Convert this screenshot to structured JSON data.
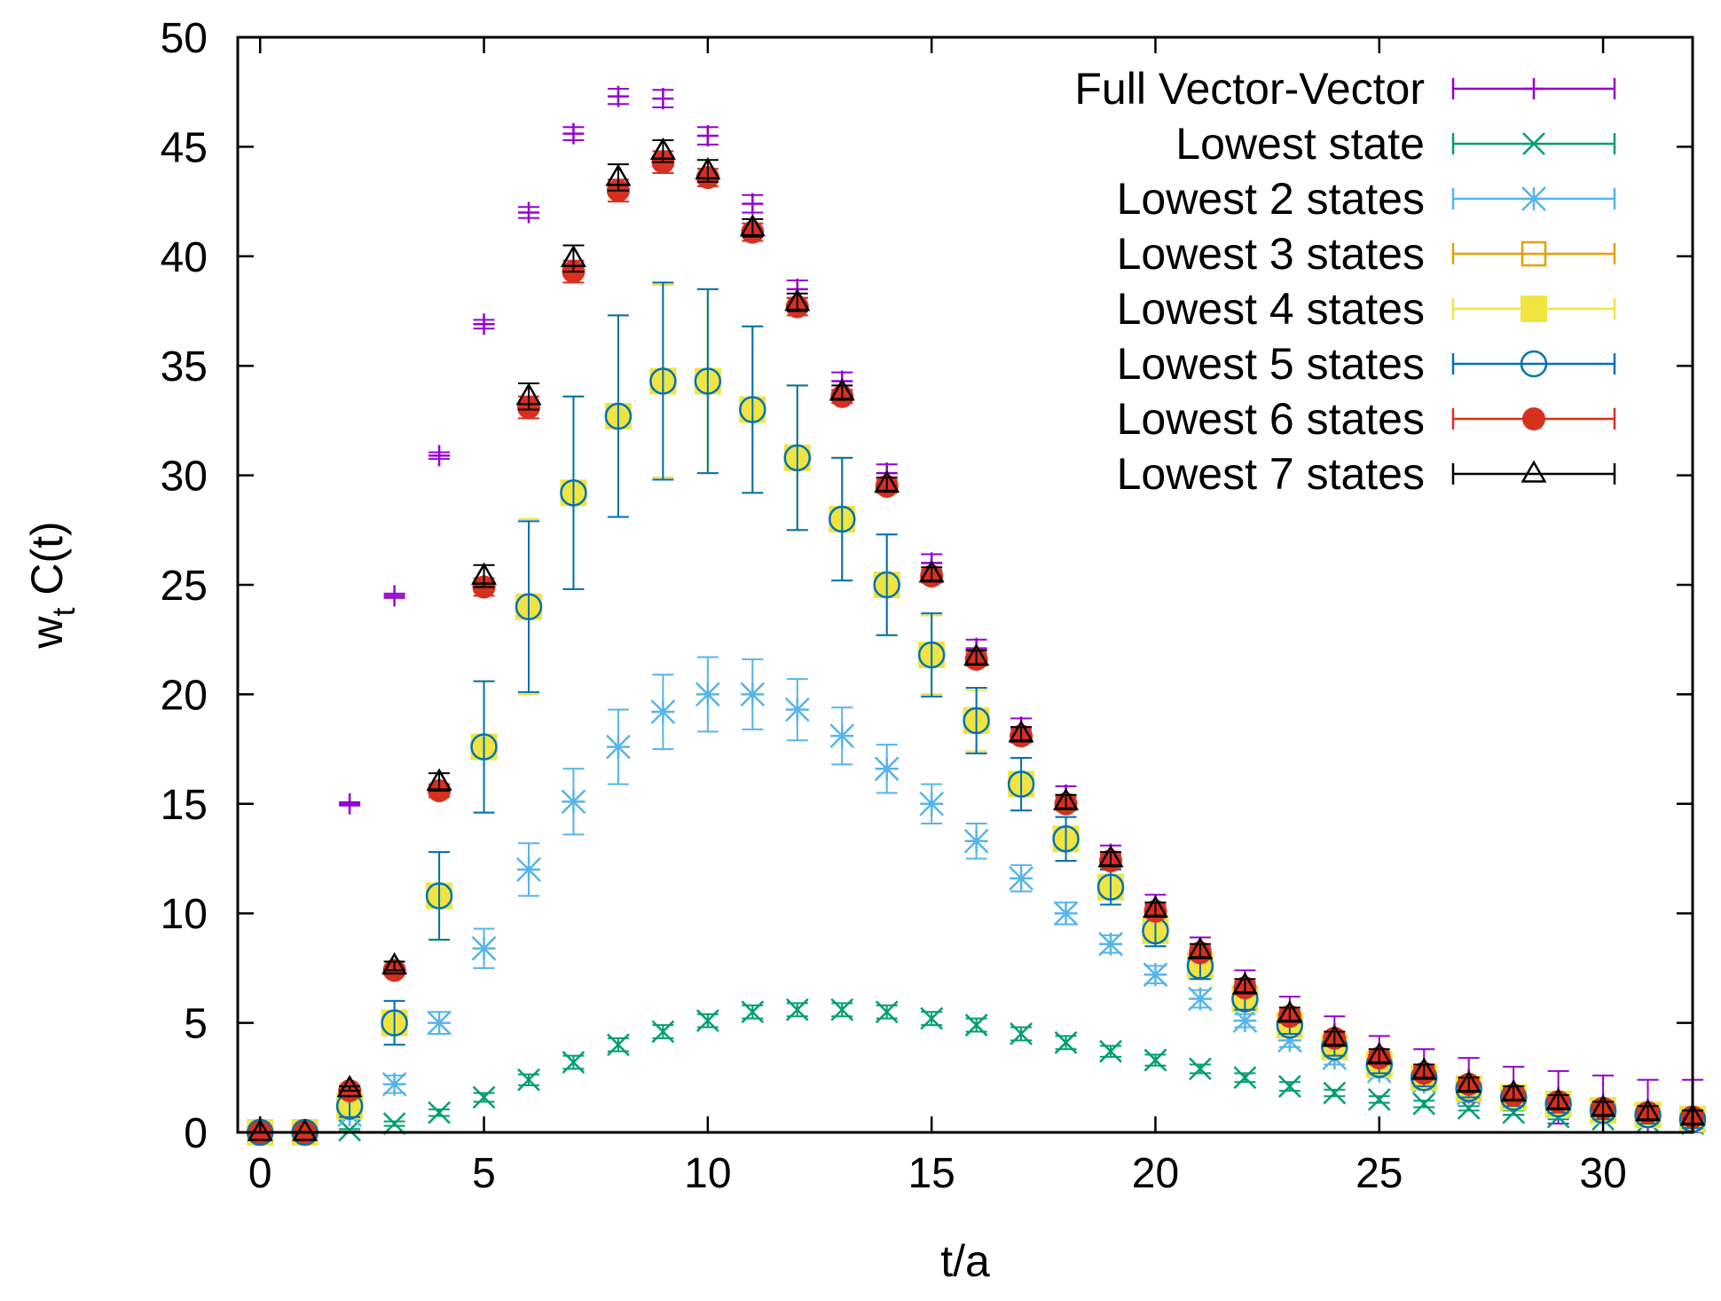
{
  "chart_data": {
    "type": "scatter",
    "title": "",
    "xlabel": "t/a",
    "ylabel": "w",
    "ylabel_sub": "t",
    "ylabel_suffix": " C(t)",
    "xlim": [
      -0.5,
      32
    ],
    "ylim": [
      0,
      50
    ],
    "xticks": [
      0,
      5,
      10,
      15,
      20,
      25,
      30
    ],
    "yticks": [
      0,
      5,
      10,
      15,
      20,
      25,
      30,
      35,
      40,
      45,
      50
    ],
    "grid": false,
    "legend_position": "top-right",
    "series": [
      {
        "name": "Full Vector-Vector",
        "color": "#9400d3",
        "marker": "plus",
        "x": [
          0,
          1,
          2,
          3,
          4,
          5,
          6,
          7,
          8,
          9,
          10,
          11,
          12,
          13,
          14,
          15,
          16,
          17,
          18,
          19,
          20,
          21,
          22,
          23,
          24,
          25,
          26,
          27,
          28,
          29,
          30,
          31,
          32
        ],
        "y": [
          0,
          0,
          15.0,
          24.5,
          30.9,
          36.9,
          42.0,
          45.6,
          47.3,
          47.2,
          45.5,
          42.4,
          38.5,
          34.3,
          30.1,
          26.0,
          22.1,
          18.5,
          15.4,
          12.7,
          10.4,
          8.4,
          6.8,
          5.5,
          4.5,
          3.6,
          2.9,
          2.4,
          1.9,
          1.6,
          1.3,
          1.0,
          0.8
        ],
        "err": [
          0,
          0,
          0.08,
          0.1,
          0.15,
          0.2,
          0.25,
          0.3,
          0.35,
          0.4,
          0.4,
          0.4,
          0.4,
          0.4,
          0.4,
          0.4,
          0.4,
          0.4,
          0.4,
          0.4,
          0.45,
          0.5,
          0.6,
          0.7,
          0.8,
          0.8,
          0.9,
          1.0,
          1.1,
          1.2,
          1.3,
          1.4,
          1.6
        ]
      },
      {
        "name": "Lowest state",
        "color": "#009e73",
        "marker": "cross",
        "x": [
          0,
          1,
          2,
          3,
          4,
          5,
          6,
          7,
          8,
          9,
          10,
          11,
          12,
          13,
          14,
          15,
          16,
          17,
          18,
          19,
          20,
          21,
          22,
          23,
          24,
          25,
          26,
          27,
          28,
          29,
          30,
          31,
          32
        ],
        "y": [
          0,
          0,
          0.1,
          0.4,
          0.9,
          1.6,
          2.4,
          3.2,
          4.0,
          4.6,
          5.1,
          5.5,
          5.6,
          5.6,
          5.5,
          5.2,
          4.9,
          4.5,
          4.1,
          3.7,
          3.3,
          2.9,
          2.5,
          2.1,
          1.8,
          1.5,
          1.3,
          1.1,
          0.9,
          0.7,
          0.6,
          0.5,
          0.4
        ],
        "err": [
          0,
          0,
          0.05,
          0.1,
          0.15,
          0.2,
          0.25,
          0.3,
          0.3,
          0.3,
          0.3,
          0.3,
          0.3,
          0.3,
          0.3,
          0.3,
          0.3,
          0.3,
          0.3,
          0.25,
          0.25,
          0.2,
          0.2,
          0.2,
          0.15,
          0.15,
          0.15,
          0.1,
          0.1,
          0.1,
          0.1,
          0.1,
          0.1
        ]
      },
      {
        "name": "Lowest 2 states",
        "color": "#56b4e9",
        "marker": "star",
        "x": [
          0,
          1,
          2,
          3,
          4,
          5,
          6,
          7,
          8,
          9,
          10,
          11,
          12,
          13,
          14,
          15,
          16,
          17,
          18,
          19,
          20,
          21,
          22,
          23,
          24,
          25,
          26,
          27,
          28,
          29,
          30,
          31,
          32
        ],
        "y": [
          0,
          0,
          0.8,
          2.2,
          5.0,
          8.4,
          12.0,
          15.1,
          17.6,
          19.2,
          20.0,
          20.0,
          19.3,
          18.1,
          16.6,
          15.0,
          13.3,
          11.6,
          10.0,
          8.6,
          7.2,
          6.1,
          5.1,
          4.2,
          3.4,
          2.8,
          2.3,
          1.8,
          1.5,
          1.2,
          1.0,
          0.8,
          0.6
        ],
        "err": [
          0,
          0,
          0.2,
          0.4,
          0.5,
          0.9,
          1.2,
          1.5,
          1.7,
          1.7,
          1.7,
          1.6,
          1.4,
          1.3,
          1.1,
          0.9,
          0.8,
          0.6,
          0.5,
          0.4,
          0.4,
          0.4,
          0.3,
          0.3,
          0.3,
          0.3,
          0.3,
          0.3,
          0.3,
          0.3,
          0.3,
          0.3,
          0.3
        ]
      },
      {
        "name": "Lowest 3 states",
        "color": "#e69f00",
        "marker": "square-open",
        "x": [
          0,
          1,
          2,
          3,
          4,
          5,
          6,
          7,
          8,
          9,
          10,
          11,
          12,
          13,
          14,
          15,
          16,
          17,
          18,
          19,
          20,
          21,
          22,
          23,
          24,
          25,
          26,
          27,
          28,
          29,
          30,
          31,
          32
        ],
        "y": [
          0,
          0,
          1.2,
          5.0,
          10.8,
          17.6,
          24.0,
          29.2,
          32.7,
          34.3,
          34.3,
          33.0,
          30.8,
          28.0,
          25.0,
          21.8,
          18.8,
          15.9,
          13.4,
          11.2,
          9.2,
          7.6,
          6.1,
          4.9,
          3.9,
          3.1,
          2.5,
          2.0,
          1.6,
          1.3,
          1.0,
          0.8,
          0.6
        ],
        "err": [
          0,
          0,
          0.4,
          1.0,
          2.0,
          3.0,
          4.0,
          4.4,
          4.6,
          4.4,
          4.2,
          3.8,
          3.3,
          2.8,
          2.3,
          1.8,
          1.4,
          1.2,
          1.0,
          0.8,
          0.7,
          0.6,
          0.5,
          0.4,
          0.4,
          0.4,
          0.4,
          0.4,
          0.4,
          0.4,
          0.4,
          0.4,
          0.4
        ]
      },
      {
        "name": "Lowest 4 states",
        "color": "#f0e442",
        "marker": "square-filled",
        "x": [
          0,
          1,
          2,
          3,
          4,
          5,
          6,
          7,
          8,
          9,
          10,
          11,
          12,
          13,
          14,
          15,
          16,
          17,
          18,
          19,
          20,
          21,
          22,
          23,
          24,
          25,
          26,
          27,
          28,
          29,
          30,
          31,
          32
        ],
        "y": [
          0,
          0,
          1.2,
          5.0,
          10.8,
          17.6,
          24.0,
          29.2,
          32.7,
          34.3,
          34.3,
          33.0,
          30.8,
          28.0,
          25.0,
          21.8,
          18.8,
          15.9,
          13.4,
          11.2,
          9.2,
          7.6,
          6.1,
          4.9,
          3.9,
          3.1,
          2.5,
          2.0,
          1.6,
          1.3,
          1.0,
          0.8,
          0.6
        ],
        "err": [
          0,
          0,
          0.4,
          1.0,
          2.0,
          3.0,
          4.0,
          4.4,
          4.6,
          4.4,
          4.2,
          3.8,
          3.3,
          2.8,
          2.3,
          1.8,
          1.4,
          1.2,
          1.0,
          0.8,
          0.7,
          0.6,
          0.5,
          0.4,
          0.4,
          0.4,
          0.4,
          0.4,
          0.4,
          0.4,
          0.4,
          0.4,
          0.4
        ]
      },
      {
        "name": "Lowest 5 states",
        "color": "#0072b2",
        "marker": "circle-open",
        "x": [
          0,
          1,
          2,
          3,
          4,
          5,
          6,
          7,
          8,
          9,
          10,
          11,
          12,
          13,
          14,
          15,
          16,
          17,
          18,
          19,
          20,
          21,
          22,
          23,
          24,
          25,
          26,
          27,
          28,
          29,
          30,
          31,
          32
        ],
        "y": [
          0,
          0,
          1.2,
          5.0,
          10.8,
          17.6,
          24.0,
          29.2,
          32.7,
          34.3,
          34.3,
          33.0,
          30.8,
          28.0,
          25.0,
          21.8,
          18.8,
          15.9,
          13.4,
          11.2,
          9.2,
          7.6,
          6.1,
          4.9,
          3.9,
          3.1,
          2.5,
          2.0,
          1.6,
          1.3,
          1.0,
          0.8,
          0.6
        ],
        "err": [
          0,
          0,
          0.5,
          1.0,
          2.0,
          3.0,
          3.9,
          4.4,
          4.6,
          4.5,
          4.2,
          3.8,
          3.3,
          2.8,
          2.3,
          1.9,
          1.5,
          1.2,
          1.0,
          0.8,
          0.7,
          0.6,
          0.5,
          0.4,
          0.4,
          0.4,
          0.4,
          0.4,
          0.4,
          0.4,
          0.4,
          0.4,
          0.4
        ]
      },
      {
        "name": "Lowest 6 states",
        "color": "#d7301f",
        "marker": "circle-filled",
        "x": [
          0,
          1,
          2,
          3,
          4,
          5,
          6,
          7,
          8,
          9,
          10,
          11,
          12,
          13,
          14,
          15,
          16,
          17,
          18,
          19,
          20,
          21,
          22,
          23,
          24,
          25,
          26,
          27,
          28,
          29,
          30,
          31,
          32
        ],
        "y": [
          0,
          0,
          1.9,
          7.4,
          15.6,
          24.9,
          33.1,
          39.3,
          43.0,
          44.3,
          43.6,
          41.1,
          37.7,
          33.6,
          29.5,
          25.4,
          21.6,
          18.1,
          15.0,
          12.4,
          10.1,
          8.2,
          6.6,
          5.3,
          4.3,
          3.4,
          2.7,
          2.2,
          1.7,
          1.4,
          1.1,
          0.9,
          0.7
        ],
        "err": [
          0,
          0,
          0.1,
          0.2,
          0.3,
          0.4,
          0.5,
          0.5,
          0.5,
          0.5,
          0.4,
          0.4,
          0.4,
          0.3,
          0.3,
          0.3,
          0.3,
          0.3,
          0.3,
          0.3,
          0.3,
          0.3,
          0.3,
          0.3,
          0.3,
          0.3,
          0.3,
          0.3,
          0.3,
          0.3,
          0.3,
          0.3,
          0.3
        ]
      },
      {
        "name": "Lowest 7 states",
        "color": "#000000",
        "marker": "triangle-open",
        "x": [
          0,
          1,
          2,
          3,
          4,
          5,
          6,
          7,
          8,
          9,
          10,
          11,
          12,
          13,
          14,
          15,
          16,
          17,
          18,
          19,
          20,
          21,
          22,
          23,
          24,
          25,
          26,
          27,
          28,
          29,
          30,
          31,
          32
        ],
        "y": [
          0,
          0,
          2.0,
          7.6,
          16.0,
          25.4,
          33.6,
          39.9,
          43.6,
          44.8,
          43.9,
          41.3,
          37.9,
          33.8,
          29.6,
          25.5,
          21.7,
          18.2,
          15.1,
          12.5,
          10.2,
          8.3,
          6.7,
          5.4,
          4.3,
          3.5,
          2.8,
          2.2,
          1.8,
          1.4,
          1.1,
          0.9,
          0.7
        ],
        "err": [
          0,
          0,
          0.1,
          0.2,
          0.4,
          0.5,
          0.6,
          0.6,
          0.6,
          0.5,
          0.5,
          0.4,
          0.4,
          0.3,
          0.3,
          0.3,
          0.3,
          0.3,
          0.3,
          0.3,
          0.3,
          0.3,
          0.3,
          0.3,
          0.3,
          0.3,
          0.3,
          0.3,
          0.3,
          0.3,
          0.3,
          0.3,
          0.3
        ]
      }
    ]
  }
}
